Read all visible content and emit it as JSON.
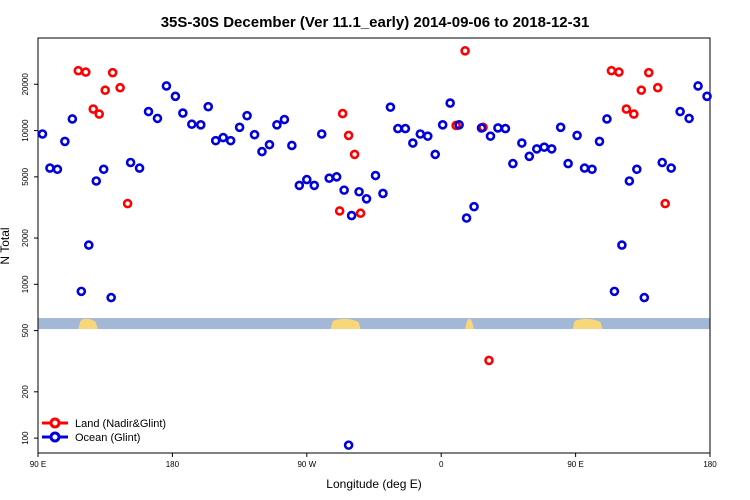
{
  "chart_data": {
    "type": "scatter",
    "title": "35S-30S December (Ver 11.1_early)   2014-09-06 to 2018-12-31",
    "xlabel": "Longitude (deg E)",
    "ylabel": "N Total",
    "xlim": [
      90,
      540
    ],
    "ylim_log": [
      80,
      40000
    ],
    "y_scale": "log",
    "x_ticks": [
      {
        "value": 90,
        "label": "90 E"
      },
      {
        "value": 180,
        "label": "180"
      },
      {
        "value": 270,
        "label": "90 W"
      },
      {
        "value": 360,
        "label": "0"
      },
      {
        "value": 450,
        "label": "90 E"
      },
      {
        "value": 540,
        "label": "180"
      }
    ],
    "y_ticks": [
      {
        "value": 100,
        "label": "100"
      },
      {
        "value": 200,
        "label": "200"
      },
      {
        "value": 500,
        "label": "500"
      },
      {
        "value": 1000,
        "label": "1000"
      },
      {
        "value": 2000,
        "label": "2000"
      },
      {
        "value": 5000,
        "label": "5000"
      },
      {
        "value": 10000,
        "label": "10000"
      },
      {
        "value": 20000,
        "label": "20000"
      }
    ],
    "map_band": {
      "y_value": 560,
      "ocean_color": "#a3b8d6",
      "land_color": "#f8d77a",
      "land_segments": [
        [
          117,
          130
        ],
        [
          117.5,
          124
        ],
        [
          286,
          306
        ],
        [
          376,
          382
        ],
        [
          448,
          468
        ]
      ]
    },
    "series": [
      {
        "name": "Land (Nadir&Glint)",
        "color": "#ff0000",
        "points": [
          [
            117,
            24500
          ],
          [
            122,
            24000
          ],
          [
            127,
            13800
          ],
          [
            131,
            12800
          ],
          [
            135,
            18300
          ],
          [
            140,
            23800
          ],
          [
            145,
            19000
          ],
          [
            150,
            3350
          ],
          [
            292,
            3000
          ],
          [
            294,
            12900
          ],
          [
            298,
            9300
          ],
          [
            302,
            7000
          ],
          [
            306,
            2900
          ],
          [
            370,
            10800
          ],
          [
            376,
            33000
          ],
          [
            388,
            10500
          ],
          [
            392,
            320
          ],
          [
            474,
            24500
          ],
          [
            479,
            24000
          ],
          [
            484,
            13800
          ],
          [
            489,
            12800
          ],
          [
            494,
            18300
          ],
          [
            499,
            23800
          ],
          [
            505,
            19000
          ],
          [
            510,
            3350
          ]
        ]
      },
      {
        "name": "Ocean (Glint)",
        "color": "#0000dd",
        "points": [
          [
            93,
            9500
          ],
          [
            98,
            5700
          ],
          [
            103,
            5600
          ],
          [
            108,
            8500
          ],
          [
            113,
            11900
          ],
          [
            119,
            900
          ],
          [
            124,
            1800
          ],
          [
            129,
            4700
          ],
          [
            134,
            5600
          ],
          [
            139,
            820
          ],
          [
            152,
            6200
          ],
          [
            158,
            5700
          ],
          [
            164,
            13300
          ],
          [
            170,
            12000
          ],
          [
            176,
            19500
          ],
          [
            182,
            16700
          ],
          [
            187,
            13000
          ],
          [
            193,
            11000
          ],
          [
            199,
            10900
          ],
          [
            204,
            14300
          ],
          [
            209,
            8600
          ],
          [
            214,
            9000
          ],
          [
            219,
            8600
          ],
          [
            225,
            10500
          ],
          [
            230,
            12500
          ],
          [
            235,
            9400
          ],
          [
            240,
            7300
          ],
          [
            245,
            8100
          ],
          [
            250,
            10900
          ],
          [
            255,
            11800
          ],
          [
            260,
            8000
          ],
          [
            265,
            4400
          ],
          [
            270,
            4800
          ],
          [
            275,
            4400
          ],
          [
            280,
            9500
          ],
          [
            285,
            4900
          ],
          [
            290,
            5000
          ],
          [
            295,
            4100
          ],
          [
            300,
            2800
          ],
          [
            305,
            4000
          ],
          [
            310,
            3600
          ],
          [
            316,
            5100
          ],
          [
            321,
            3900
          ],
          [
            326,
            14200
          ],
          [
            331,
            10300
          ],
          [
            336,
            10300
          ],
          [
            341,
            8300
          ],
          [
            346,
            9500
          ],
          [
            351,
            9200
          ],
          [
            356,
            7000
          ],
          [
            361,
            10900
          ],
          [
            366,
            15100
          ],
          [
            372,
            10900
          ],
          [
            377,
            2700
          ],
          [
            382,
            3200
          ],
          [
            387,
            10400
          ],
          [
            393,
            9200
          ],
          [
            398,
            10400
          ],
          [
            403,
            10300
          ],
          [
            408,
            6100
          ],
          [
            414,
            8300
          ],
          [
            419,
            6800
          ],
          [
            424,
            7600
          ],
          [
            429,
            7800
          ],
          [
            434,
            7600
          ],
          [
            440,
            10500
          ],
          [
            445,
            6100
          ],
          [
            451,
            9300
          ],
          [
            456,
            5700
          ],
          [
            461,
            5600
          ],
          [
            466,
            8500
          ],
          [
            471,
            11900
          ],
          [
            476,
            900
          ],
          [
            481,
            1800
          ],
          [
            486,
            4700
          ],
          [
            491,
            5600
          ],
          [
            496,
            820
          ],
          [
            508,
            6200
          ],
          [
            514,
            5700
          ],
          [
            520,
            13300
          ],
          [
            526,
            12000
          ],
          [
            532,
            19500
          ],
          [
            538,
            16700
          ],
          [
            298,
            90
          ]
        ]
      }
    ]
  }
}
